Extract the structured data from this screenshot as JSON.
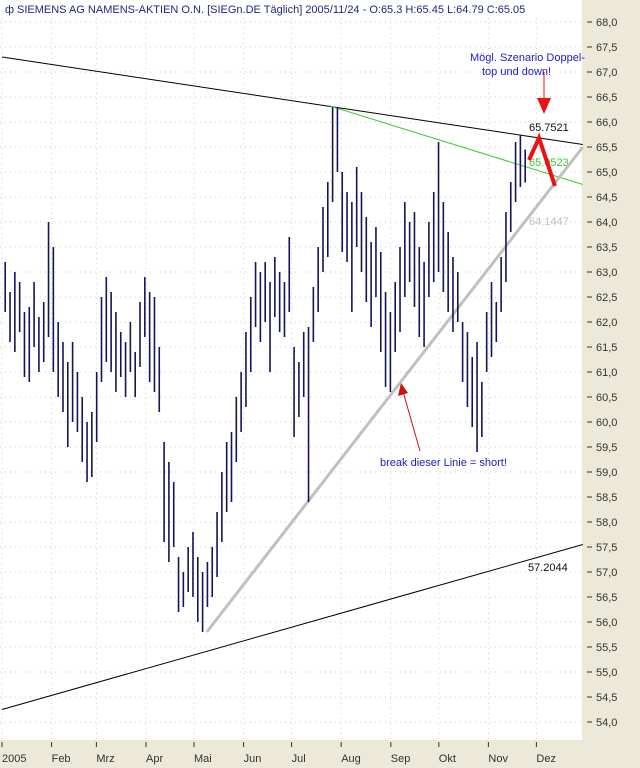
{
  "title": "SIEMENS AG NAMENS-AKTIEN O.N. [SIEGn.DE  Täglich] 2005/11/24 - O:65.3 H:65.45 L:64.79 C:65.05",
  "chart_data": {
    "type": "ohlc-bar",
    "symbol": "SIEGn.DE",
    "period": "Täglich",
    "last_bar": {
      "date": "2005/11/24",
      "open": 65.3,
      "high": 65.45,
      "low": 64.79,
      "close": 65.05
    },
    "ylim": [
      53.5,
      68.4
    ],
    "y_ticks": [
      "68,0",
      "67,5",
      "67,0",
      "66,5",
      "66,0",
      "65,5",
      "65,0",
      "64,5",
      "64,0",
      "63,5",
      "63,0",
      "62,5",
      "62,0",
      "61,5",
      "61,0",
      "60,5",
      "60,0",
      "59,5",
      "59,0",
      "58,5",
      "58,0",
      "57,5",
      "57,0",
      "56,5",
      "56,0",
      "55,5",
      "55,0",
      "54,5",
      "54,0"
    ],
    "x_ticks": [
      {
        "label": "2005",
        "date": "2005-01-01"
      },
      {
        "label": "Feb",
        "date": "2005-02-01"
      },
      {
        "label": "Mrz",
        "date": "2005-03-01"
      },
      {
        "label": "Apr",
        "date": "2005-04-01"
      },
      {
        "label": "Mai",
        "date": "2005-05-01"
      },
      {
        "label": "Jun",
        "date": "2005-06-01"
      },
      {
        "label": "Jul",
        "date": "2005-07-01"
      },
      {
        "label": "Aug",
        "date": "2005-08-01"
      },
      {
        "label": "Sep",
        "date": "2005-09-01"
      },
      {
        "label": "Okt",
        "date": "2005-10-01"
      },
      {
        "label": "Nov",
        "date": "2005-11-01"
      },
      {
        "label": "Dez",
        "date": "2005-12-01"
      }
    ],
    "grid": true,
    "bars_range": [
      "2005-01-03",
      "2005-11-24"
    ],
    "bars_high_low": [
      [
        63.2,
        62.2
      ],
      [
        62.6,
        61.6
      ],
      [
        63.0,
        61.4
      ],
      [
        62.8,
        61.8
      ],
      [
        62.2,
        60.9
      ],
      [
        62.3,
        60.8
      ],
      [
        62.8,
        61.5
      ],
      [
        62.1,
        61.0
      ],
      [
        62.4,
        61.2
      ],
      [
        64.0,
        61.7
      ],
      [
        63.5,
        61.0
      ],
      [
        62.0,
        60.5
      ],
      [
        61.6,
        60.2
      ],
      [
        61.2,
        59.5
      ],
      [
        61.6,
        60.0
      ],
      [
        61.0,
        59.8
      ],
      [
        60.5,
        59.2
      ],
      [
        60.0,
        58.8
      ],
      [
        60.2,
        58.9
      ],
      [
        61.0,
        59.6
      ],
      [
        62.5,
        60.8
      ],
      [
        62.9,
        61.2
      ],
      [
        62.6,
        61.0
      ],
      [
        62.2,
        60.6
      ],
      [
        61.8,
        60.9
      ],
      [
        61.6,
        60.5
      ],
      [
        62.0,
        61.0
      ],
      [
        61.4,
        60.5
      ],
      [
        62.4,
        61.1
      ],
      [
        62.9,
        61.7
      ],
      [
        62.6,
        60.8
      ],
      [
        62.5,
        60.6
      ],
      [
        61.5,
        60.2
      ],
      [
        59.6,
        57.6
      ],
      [
        59.2,
        57.2
      ],
      [
        58.8,
        57.5
      ],
      [
        57.3,
        56.2
      ],
      [
        57.0,
        56.3
      ],
      [
        57.5,
        56.6
      ],
      [
        57.8,
        56.5
      ],
      [
        57.3,
        56.0
      ],
      [
        57.0,
        55.8
      ],
      [
        57.2,
        56.3
      ],
      [
        57.5,
        56.5
      ],
      [
        58.2,
        56.9
      ],
      [
        59.0,
        57.6
      ],
      [
        59.6,
        58.2
      ],
      [
        59.8,
        58.4
      ],
      [
        60.5,
        59.2
      ],
      [
        61.0,
        59.8
      ],
      [
        61.8,
        60.3
      ],
      [
        62.5,
        61.0
      ],
      [
        63.2,
        61.9
      ],
      [
        63.0,
        61.6
      ],
      [
        63.2,
        62.0
      ],
      [
        62.8,
        61.0
      ],
      [
        63.3,
        62.1
      ],
      [
        63.0,
        61.8
      ],
      [
        62.8,
        61.7
      ],
      [
        63.7,
        62.2
      ],
      [
        61.5,
        59.7
      ],
      [
        61.2,
        60.1
      ],
      [
        61.8,
        60.5
      ],
      [
        61.9,
        58.4
      ],
      [
        62.7,
        61.6
      ],
      [
        63.5,
        62.2
      ],
      [
        64.3,
        63.0
      ],
      [
        64.8,
        63.3
      ],
      [
        66.3,
        64.4
      ],
      [
        66.3,
        65.0
      ],
      [
        65.0,
        63.4
      ],
      [
        64.6,
        63.2
      ],
      [
        64.4,
        62.2
      ],
      [
        65.1,
        63.5
      ],
      [
        64.6,
        63.0
      ],
      [
        64.1,
        62.4
      ],
      [
        63.6,
        61.9
      ],
      [
        63.9,
        62.5
      ],
      [
        63.4,
        61.4
      ],
      [
        62.6,
        60.7
      ],
      [
        62.2,
        60.6
      ],
      [
        62.8,
        61.4
      ],
      [
        63.5,
        61.8
      ],
      [
        64.4,
        62.5
      ],
      [
        64.0,
        62.8
      ],
      [
        64.2,
        62.3
      ],
      [
        63.5,
        61.7
      ],
      [
        63.2,
        61.5
      ],
      [
        64.0,
        62.5
      ],
      [
        64.6,
        62.8
      ],
      [
        65.6,
        63.0
      ],
      [
        64.4,
        62.6
      ],
      [
        63.8,
        62.2
      ],
      [
        63.3,
        61.8
      ],
      [
        63.0,
        62.0
      ],
      [
        62.0,
        60.8
      ],
      [
        61.8,
        60.3
      ],
      [
        61.3,
        59.9
      ],
      [
        61.6,
        59.4
      ],
      [
        60.8,
        59.7
      ],
      [
        62.2,
        61.0
      ],
      [
        62.8,
        61.3
      ],
      [
        62.4,
        61.6
      ],
      [
        63.3,
        62.2
      ],
      [
        64.2,
        62.8
      ],
      [
        64.8,
        63.8
      ],
      [
        65.6,
        64.4
      ],
      [
        65.75,
        64.7
      ],
      [
        65.45,
        64.79
      ]
    ],
    "trendlines": [
      {
        "name": "upper-resistance",
        "color": "#000000",
        "from": [
          "2005-01-01",
          67.3
        ],
        "to": [
          "2005-12-30",
          65.55
        ],
        "label": "65.7521"
      },
      {
        "name": "green-resistance",
        "color": "#33cc33",
        "from": [
          "2005-07-25",
          66.32
        ],
        "to": [
          "2005-12-30",
          64.75
        ],
        "label": "65.0523"
      },
      {
        "name": "support",
        "color": "#c0c0c0",
        "from": [
          "2005-05-09",
          55.8
        ],
        "to": [
          "2005-12-30",
          65.5
        ],
        "label": "64.1447"
      },
      {
        "name": "lower-support",
        "color": "#000000",
        "from": [
          "2005-01-01",
          54.25
        ],
        "to": [
          "2005-12-30",
          57.55
        ],
        "label": "57.2044"
      }
    ],
    "annotations": {
      "scenario_line1": "Mögl. Szenario Doppel-",
      "scenario_line2": "top und down!",
      "break_note": "break dieser Linie = short!",
      "arrow_color": "#ee1111",
      "text_color": "#2020c8"
    }
  }
}
